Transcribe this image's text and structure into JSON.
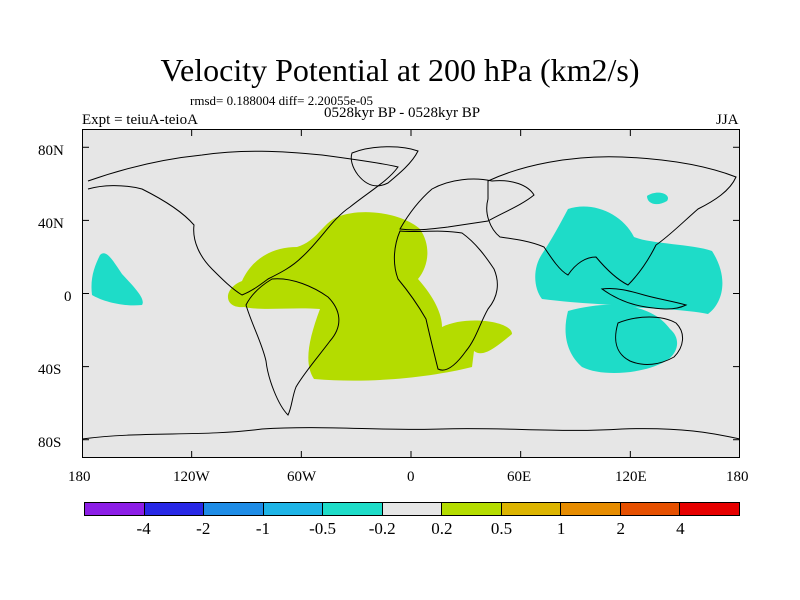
{
  "title": "Velocity Potential at 200 hPa (km2/s)",
  "stats": "rmsd= 0.188004 diff= 2.20055e-05",
  "experiment": "Expt = teiuA-teioA",
  "period": "0528kyr BP - 0528kyr BP",
  "season": "JJA",
  "map": {
    "lon_ticks": [
      "180",
      "120W",
      "60W",
      "0",
      "60E",
      "120E",
      "180"
    ],
    "lat_ticks": [
      "80N",
      "40N",
      "0",
      "40S",
      "80S"
    ],
    "background_color": "#e6e6e6",
    "coast_color": "#000000"
  },
  "colorbar": {
    "colors": [
      "#8c1ee6",
      "#2828e6",
      "#1e8ce6",
      "#1eb4e6",
      "#1edcc8",
      "#e6e6e6",
      "#b4dc00",
      "#dcb400",
      "#e68c00",
      "#e65000",
      "#e60000"
    ],
    "labels": [
      "-4",
      "-2",
      "-1",
      "-0.5",
      "-0.2",
      "0.2",
      "0.5",
      "1",
      "2",
      "4"
    ]
  },
  "fields": {
    "positive_color": "#b4dc00",
    "negative_color": "#1edcc8"
  }
}
